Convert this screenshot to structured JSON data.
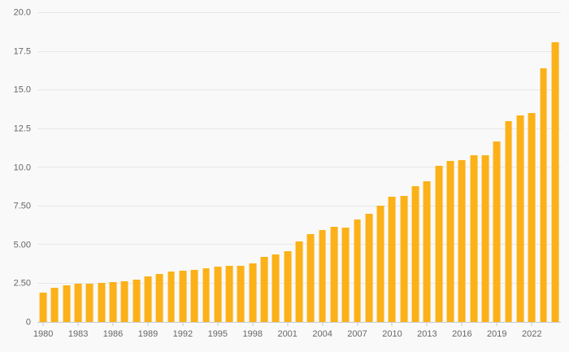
{
  "chart": {
    "background_color": "#f9f9f9",
    "bar_color": "#fbb117",
    "grid_color": "#e7e7e7",
    "axis_color": "#c9c9c9",
    "label_color": "#666666"
  },
  "chart_data": {
    "type": "bar",
    "title": "",
    "xlabel": "",
    "ylabel": "",
    "ylim": [
      0,
      20
    ],
    "grid": true,
    "legend": false,
    "categories": [
      "1980",
      "1981",
      "1982",
      "1983",
      "1984",
      "1985",
      "1986",
      "1987",
      "1988",
      "1989",
      "1990",
      "1991",
      "1992",
      "1993",
      "1994",
      "1995",
      "1996",
      "1997",
      "1998",
      "1999",
      "2000",
      "2001",
      "2002",
      "2003",
      "2004",
      "2005",
      "2006",
      "2007",
      "2008",
      "2009",
      "2010",
      "2011",
      "2012",
      "2013",
      "2014",
      "2015",
      "2016",
      "2017",
      "2018",
      "2019",
      "2020",
      "2021",
      "2022",
      "2023",
      "2024"
    ],
    "values": [
      1.9,
      2.2,
      2.35,
      2.45,
      2.5,
      2.55,
      2.6,
      2.65,
      2.75,
      2.95,
      3.1,
      3.25,
      3.3,
      3.35,
      3.45,
      3.6,
      3.65,
      3.65,
      3.8,
      4.2,
      4.35,
      4.6,
      5.2,
      5.7,
      5.95,
      6.15,
      6.1,
      6.65,
      7.0,
      7.55,
      8.1,
      8.15,
      8.8,
      9.1,
      10.1,
      10.4,
      10.45,
      10.8,
      10.8,
      11.7,
      13.0,
      13.35,
      13.55,
      16.4,
      18.1
    ],
    "ytick_values": [
      0,
      2.5,
      5,
      7.5,
      10,
      12.5,
      15,
      17.5,
      20
    ],
    "ytick_labels": [
      "0",
      "2.50",
      "5.00",
      "7.50",
      "10.0",
      "12.5",
      "15.0",
      "17.5",
      "20.0"
    ],
    "xtick_labels": [
      "1980",
      "1983",
      "1986",
      "1989",
      "1992",
      "1995",
      "1998",
      "2001",
      "2004",
      "2007",
      "2010",
      "2013",
      "2016",
      "2019",
      "2022"
    ]
  }
}
